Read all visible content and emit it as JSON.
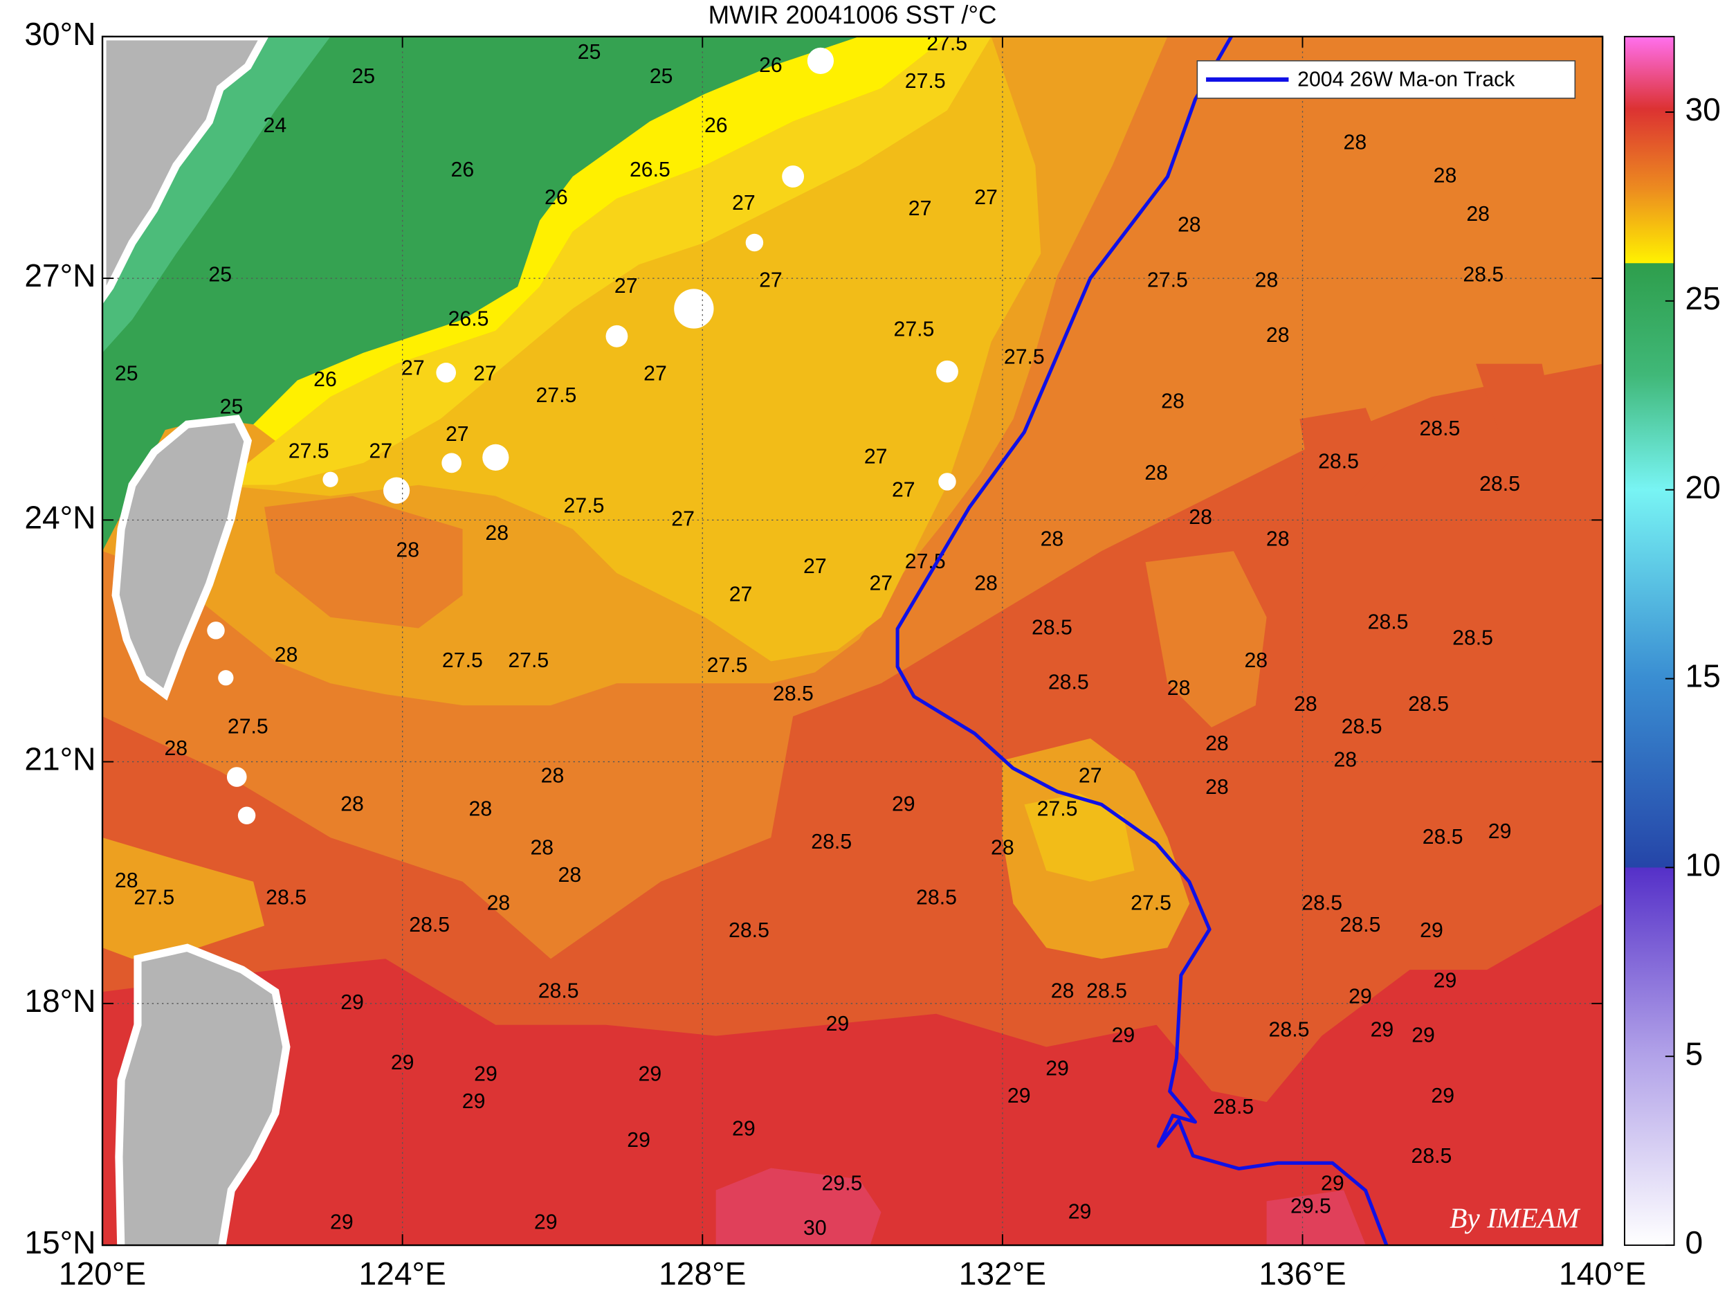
{
  "chart_data": {
    "type": "map",
    "title": "MWIR 20041006 SST /°C",
    "xlim": [
      120,
      140
    ],
    "xticks": [
      {
        "value": 120,
        "label": "120°E"
      },
      {
        "value": 124,
        "label": "124°E"
      },
      {
        "value": 128,
        "label": "128°E"
      },
      {
        "value": 132,
        "label": "132°E"
      },
      {
        "value": 136,
        "label": "136°E"
      },
      {
        "value": 140,
        "label": "140°E"
      }
    ],
    "ylim": [
      15,
      30
    ],
    "yticks": [
      {
        "value": 15,
        "label": "15°N"
      },
      {
        "value": 18,
        "label": "18°N"
      },
      {
        "value": 21,
        "label": "21°N"
      },
      {
        "value": 24,
        "label": "24°N"
      },
      {
        "value": 27,
        "label": "27°N"
      },
      {
        "value": 30,
        "label": "30°N"
      }
    ],
    "grid": true,
    "legend": "upper right",
    "colorbar": {
      "clim": [
        0,
        32
      ],
      "ticks": [
        0,
        5,
        10,
        15,
        20,
        25,
        30
      ]
    },
    "series": [
      {
        "name": "2004 26W Ma-on Track",
        "color": "#1010e6",
        "x": [
          135.05,
          134.57,
          134.2,
          133.17,
          132.29,
          131.56,
          130.6,
          130.6,
          130.82,
          131.63,
          132.14,
          132.73,
          133.32,
          134.05,
          134.49,
          134.76,
          134.38,
          134.32,
          134.23,
          134.42,
          134.57,
          134.27,
          134.08,
          134.35,
          134.54,
          135.15,
          135.67,
          136.4,
          136.84,
          137.14
        ],
        "y": [
          30.0,
          29.22,
          28.26,
          27.0,
          25.09,
          24.16,
          22.65,
          22.18,
          21.81,
          21.35,
          20.92,
          20.63,
          20.47,
          19.99,
          19.51,
          18.92,
          18.35,
          17.32,
          16.91,
          16.7,
          16.53,
          16.61,
          16.23,
          16.55,
          16.11,
          15.95,
          16.02,
          16.02,
          15.68,
          14.95
        ]
      }
    ],
    "contour_labels": [
      {
        "value": 25,
        "lon": 123.48,
        "lat": 29.49
      },
      {
        "value": 25,
        "lon": 126.49,
        "lat": 29.79
      },
      {
        "value": 25,
        "lon": 127.45,
        "lat": 29.49
      },
      {
        "value": 26,
        "lon": 128.91,
        "lat": 29.63
      },
      {
        "value": 24,
        "lon": 122.3,
        "lat": 28.88
      },
      {
        "value": 26,
        "lon": 124.8,
        "lat": 28.33
      },
      {
        "value": 25,
        "lon": 121.57,
        "lat": 27.03
      },
      {
        "value": 25,
        "lon": 120.32,
        "lat": 25.8
      },
      {
        "value": 25,
        "lon": 121.72,
        "lat": 25.39
      },
      {
        "value": 26,
        "lon": 128.18,
        "lat": 28.88
      },
      {
        "value": 26.5,
        "lon": 127.3,
        "lat": 28.33
      },
      {
        "value": 26,
        "lon": 126.05,
        "lat": 27.99
      },
      {
        "value": 27,
        "lon": 128.55,
        "lat": 27.92
      },
      {
        "value": 27,
        "lon": 130.9,
        "lat": 27.85
      },
      {
        "value": 27,
        "lon": 131.78,
        "lat": 27.99
      },
      {
        "value": 27.5,
        "lon": 130.97,
        "lat": 29.43
      },
      {
        "value": 27.5,
        "lon": 131.26,
        "lat": 29.9
      },
      {
        "value": 26.5,
        "lon": 124.88,
        "lat": 26.48
      },
      {
        "value": 26,
        "lon": 122.97,
        "lat": 25.73
      },
      {
        "value": 27,
        "lon": 124.14,
        "lat": 25.87
      },
      {
        "value": 27,
        "lon": 125.1,
        "lat": 25.8
      },
      {
        "value": 27,
        "lon": 127.37,
        "lat": 25.8
      },
      {
        "value": 27.5,
        "lon": 126.05,
        "lat": 25.53
      },
      {
        "value": 27,
        "lon": 126.98,
        "lat": 26.89
      },
      {
        "value": 27,
        "lon": 128.91,
        "lat": 26.96
      },
      {
        "value": 27.5,
        "lon": 130.82,
        "lat": 26.35
      },
      {
        "value": 27.5,
        "lon": 132.29,
        "lat": 26.01
      },
      {
        "value": 27.5,
        "lon": 134.2,
        "lat": 26.96
      },
      {
        "value": 28,
        "lon": 136.7,
        "lat": 28.67
      },
      {
        "value": 28,
        "lon": 134.49,
        "lat": 27.65
      },
      {
        "value": 28,
        "lon": 137.9,
        "lat": 28.26
      },
      {
        "value": 28,
        "lon": 138.34,
        "lat": 27.78
      },
      {
        "value": 28.5,
        "lon": 138.41,
        "lat": 27.03
      },
      {
        "value": 28,
        "lon": 135.52,
        "lat": 26.96
      },
      {
        "value": 28,
        "lon": 135.67,
        "lat": 26.28
      },
      {
        "value": 28,
        "lon": 134.27,
        "lat": 25.46
      },
      {
        "value": 28.5,
        "lon": 137.83,
        "lat": 25.12
      },
      {
        "value": 28.5,
        "lon": 136.48,
        "lat": 24.71
      },
      {
        "value": 28,
        "lon": 134.05,
        "lat": 24.57
      },
      {
        "value": 28,
        "lon": 134.64,
        "lat": 24.02
      },
      {
        "value": 28,
        "lon": 135.67,
        "lat": 23.75
      },
      {
        "value": 28.5,
        "lon": 138.63,
        "lat": 24.43
      },
      {
        "value": 28,
        "lon": 132.66,
        "lat": 23.75
      },
      {
        "value": 27,
        "lon": 124.73,
        "lat": 25.05
      },
      {
        "value": 27.5,
        "lon": 122.75,
        "lat": 24.84
      },
      {
        "value": 27,
        "lon": 123.71,
        "lat": 24.84
      },
      {
        "value": 27.5,
        "lon": 126.42,
        "lat": 24.16
      },
      {
        "value": 28,
        "lon": 125.26,
        "lat": 23.82
      },
      {
        "value": 28,
        "lon": 124.07,
        "lat": 23.61
      },
      {
        "value": 27,
        "lon": 130.31,
        "lat": 24.77
      },
      {
        "value": 27,
        "lon": 130.68,
        "lat": 24.36
      },
      {
        "value": 27,
        "lon": 127.74,
        "lat": 24.0
      },
      {
        "value": 27,
        "lon": 129.5,
        "lat": 23.41
      },
      {
        "value": 27,
        "lon": 128.51,
        "lat": 23.06
      },
      {
        "value": 27,
        "lon": 130.38,
        "lat": 23.2
      },
      {
        "value": 27.5,
        "lon": 130.97,
        "lat": 23.47
      },
      {
        "value": 28,
        "lon": 131.78,
        "lat": 23.2
      },
      {
        "value": 28.5,
        "lon": 132.66,
        "lat": 22.65
      },
      {
        "value": 28.5,
        "lon": 132.88,
        "lat": 21.97
      },
      {
        "value": 28,
        "lon": 134.35,
        "lat": 21.9
      },
      {
        "value": 28,
        "lon": 135.38,
        "lat": 22.24
      },
      {
        "value": 28,
        "lon": 136.04,
        "lat": 21.7
      },
      {
        "value": 28.5,
        "lon": 137.14,
        "lat": 22.72
      },
      {
        "value": 28.5,
        "lon": 138.27,
        "lat": 22.52
      },
      {
        "value": 28.5,
        "lon": 137.68,
        "lat": 21.7
      },
      {
        "value": 28,
        "lon": 136.57,
        "lat": 21.01
      },
      {
        "value": 28.5,
        "lon": 136.79,
        "lat": 21.42
      },
      {
        "value": 28,
        "lon": 134.86,
        "lat": 21.21
      },
      {
        "value": 28,
        "lon": 134.86,
        "lat": 20.67
      },
      {
        "value": 28,
        "lon": 122.45,
        "lat": 22.31
      },
      {
        "value": 27.5,
        "lon": 124.8,
        "lat": 22.24
      },
      {
        "value": 27.5,
        "lon": 125.68,
        "lat": 22.24
      },
      {
        "value": 27.5,
        "lon": 128.33,
        "lat": 22.18
      },
      {
        "value": 28.5,
        "lon": 129.21,
        "lat": 21.83
      },
      {
        "value": 28,
        "lon": 120.98,
        "lat": 21.15
      },
      {
        "value": 27.5,
        "lon": 121.94,
        "lat": 21.42
      },
      {
        "value": 28,
        "lon": 123.33,
        "lat": 20.46
      },
      {
        "value": 28,
        "lon": 126.0,
        "lat": 20.81
      },
      {
        "value": 28,
        "lon": 125.04,
        "lat": 20.4
      },
      {
        "value": 28,
        "lon": 125.86,
        "lat": 19.92
      },
      {
        "value": 28,
        "lon": 126.23,
        "lat": 19.58
      },
      {
        "value": 28,
        "lon": 125.28,
        "lat": 19.23
      },
      {
        "value": 28.5,
        "lon": 129.72,
        "lat": 19.99
      },
      {
        "value": 29,
        "lon": 130.68,
        "lat": 20.46
      },
      {
        "value": 28.5,
        "lon": 131.12,
        "lat": 19.3
      },
      {
        "value": 28,
        "lon": 132.0,
        "lat": 19.92
      },
      {
        "value": 27.5,
        "lon": 132.73,
        "lat": 20.4
      },
      {
        "value": 27,
        "lon": 133.17,
        "lat": 20.81
      },
      {
        "value": 27.5,
        "lon": 133.98,
        "lat": 19.23
      },
      {
        "value": 28,
        "lon": 132.8,
        "lat": 18.14
      },
      {
        "value": 28.5,
        "lon": 133.39,
        "lat": 18.14
      },
      {
        "value": 28.5,
        "lon": 128.62,
        "lat": 18.89
      },
      {
        "value": 28.5,
        "lon": 126.08,
        "lat": 18.14
      },
      {
        "value": 28.5,
        "lon": 124.36,
        "lat": 18.96
      },
      {
        "value": 28,
        "lon": 120.32,
        "lat": 19.51
      },
      {
        "value": 27.5,
        "lon": 120.69,
        "lat": 19.3
      },
      {
        "value": 28.5,
        "lon": 122.45,
        "lat": 19.3
      },
      {
        "value": 29,
        "lon": 129.8,
        "lat": 17.73
      },
      {
        "value": 29,
        "lon": 127.3,
        "lat": 17.11
      },
      {
        "value": 29,
        "lon": 125.11,
        "lat": 17.11
      },
      {
        "value": 29,
        "lon": 124.95,
        "lat": 16.77
      },
      {
        "value": 29,
        "lon": 124.0,
        "lat": 17.25
      },
      {
        "value": 29,
        "lon": 123.33,
        "lat": 18.0
      },
      {
        "value": 29,
        "lon": 123.19,
        "lat": 15.27
      },
      {
        "value": 29,
        "lon": 125.91,
        "lat": 15.27
      },
      {
        "value": 29,
        "lon": 127.15,
        "lat": 16.29
      },
      {
        "value": 29,
        "lon": 128.55,
        "lat": 16.43
      },
      {
        "value": 29.5,
        "lon": 129.86,
        "lat": 15.75
      },
      {
        "value": 30,
        "lon": 129.5,
        "lat": 15.2
      },
      {
        "value": 29,
        "lon": 132.73,
        "lat": 17.18
      },
      {
        "value": 29,
        "lon": 132.22,
        "lat": 16.84
      },
      {
        "value": 29,
        "lon": 133.61,
        "lat": 17.59
      },
      {
        "value": 29,
        "lon": 133.03,
        "lat": 15.4
      },
      {
        "value": 28.5,
        "lon": 135.82,
        "lat": 17.66
      },
      {
        "value": 28.5,
        "lon": 135.08,
        "lat": 16.7
      },
      {
        "value": 29.5,
        "lon": 136.11,
        "lat": 15.47
      },
      {
        "value": 29,
        "lon": 136.4,
        "lat": 15.75
      },
      {
        "value": 29,
        "lon": 136.77,
        "lat": 18.07
      },
      {
        "value": 29,
        "lon": 137.06,
        "lat": 17.66
      },
      {
        "value": 29,
        "lon": 137.72,
        "lat": 18.89
      },
      {
        "value": 28.5,
        "lon": 136.77,
        "lat": 18.96
      },
      {
        "value": 28.5,
        "lon": 136.26,
        "lat": 19.23
      },
      {
        "value": 28.5,
        "lon": 137.87,
        "lat": 20.05
      },
      {
        "value": 29,
        "lon": 138.63,
        "lat": 20.12
      },
      {
        "value": 29,
        "lon": 137.9,
        "lat": 18.27
      },
      {
        "value": 29,
        "lon": 137.61,
        "lat": 17.59
      },
      {
        "value": 29,
        "lon": 137.87,
        "lat": 16.84
      },
      {
        "value": 28.5,
        "lon": 137.72,
        "lat": 16.09
      }
    ]
  },
  "watermark": "By IMEAM"
}
